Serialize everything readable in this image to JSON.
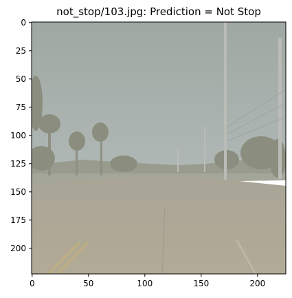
{
  "figure": {
    "title": "not_stop/103.jpg: Prediction = Not Stop"
  },
  "axes": {
    "x_ticks": [
      "0",
      "50",
      "100",
      "150",
      "200"
    ],
    "y_ticks": [
      "0",
      "25",
      "50",
      "75",
      "100",
      "125",
      "150",
      "175",
      "200"
    ]
  },
  "image": {
    "scene": "road with palm trees and utility poles under overcast sky",
    "icons": {
      "sky": "sky-region",
      "road": "road-surface",
      "trees": "palm-trees",
      "pole": "utility-pole"
    },
    "colors": {
      "sky": "#a3aba4",
      "road": "#aaa596",
      "vegetation": "#8d9180",
      "lane_marking": "#b9a980"
    }
  }
}
